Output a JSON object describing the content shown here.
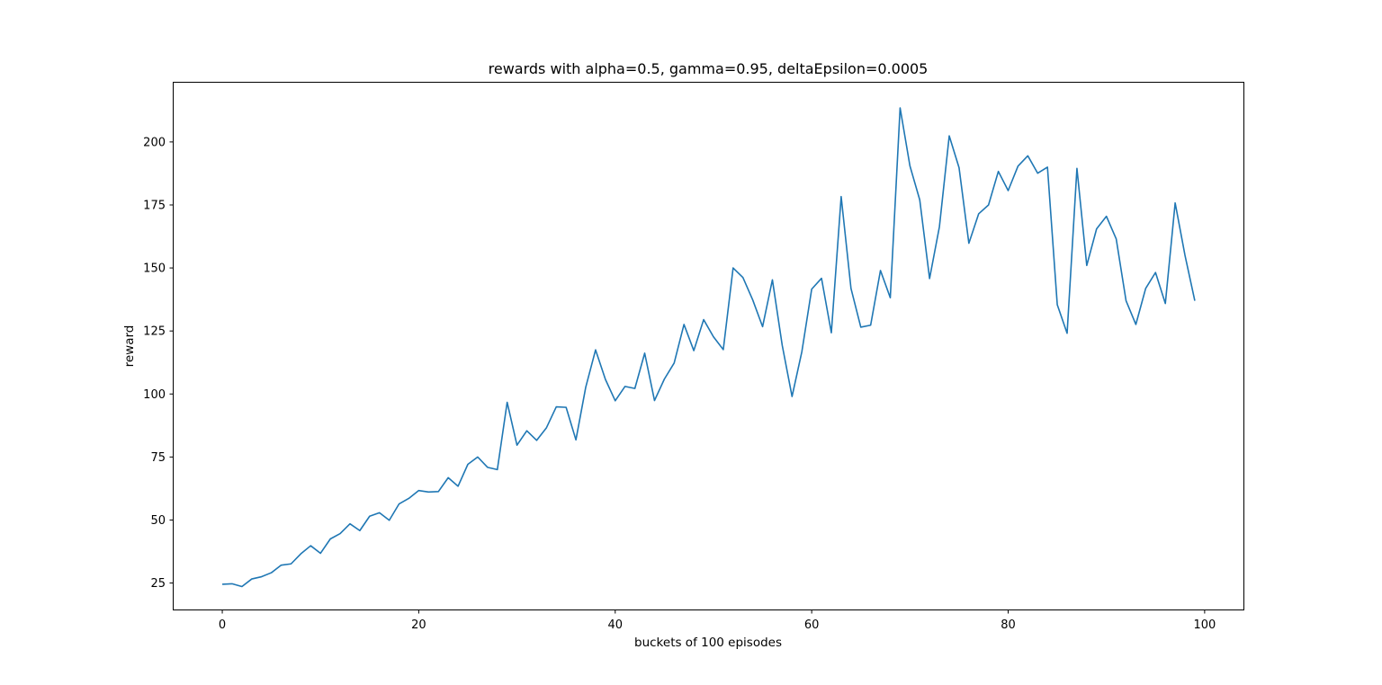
{
  "chart_data": {
    "type": "line",
    "title": "rewards with alpha=0.5, gamma=0.95, deltaEpsilon=0.0005",
    "xlabel": "buckets of 100 episodes",
    "ylabel": "reward",
    "xlim": [
      -4.95,
      103.95
    ],
    "ylim": [
      14.5,
      223.5
    ],
    "x_ticks": [
      0,
      20,
      40,
      60,
      80,
      100
    ],
    "y_ticks": [
      25,
      50,
      75,
      100,
      125,
      150,
      175,
      200
    ],
    "grid": false,
    "line_color": "#1f77b4",
    "series": [
      {
        "values": [
          24.5,
          24.7,
          23.6,
          26.6,
          27.5,
          29.1,
          32.1,
          32.6,
          36.6,
          39.8,
          36.8,
          42.5,
          44.6,
          48.5,
          45.8,
          51.5,
          52.9,
          49.9,
          56.4,
          58.6,
          61.7,
          61.1,
          61.3,
          66.8,
          63.4,
          72.1,
          75.0,
          70.9,
          70.0,
          96.7,
          79.7,
          85.4,
          81.6,
          86.6,
          94.9,
          94.7,
          81.8,
          102.7,
          117.5,
          105.8,
          97.3,
          103.0,
          102.2,
          116.2,
          97.4,
          105.9,
          112.3,
          127.6,
          117.2,
          129.5,
          122.7,
          117.6,
          150.0,
          146.2,
          137.3,
          126.7,
          145.3,
          119.3,
          99.0,
          116.8,
          141.6,
          145.9,
          124.3,
          178.3,
          141.9,
          126.5,
          127.3,
          149.0,
          138.2,
          213.5,
          190.5,
          177.0,
          145.8,
          166.3,
          202.4,
          189.8,
          159.8,
          171.5,
          175.0,
          188.3,
          180.7,
          190.4,
          194.5,
          187.6,
          190.0,
          135.4,
          124.1,
          189.5,
          151.0,
          165.5,
          170.5,
          161.5,
          137.0,
          127.6,
          141.9,
          148.2,
          135.9,
          175.8,
          155.0,
          137.0
        ]
      }
    ]
  }
}
